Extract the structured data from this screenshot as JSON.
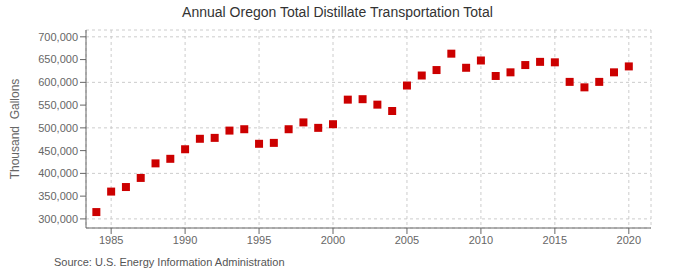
{
  "chart_data": {
    "type": "scatter",
    "title": "Annual Oregon Total Distillate Transportation Total",
    "ylabel": "Thousand  Gallons",
    "annotation": "Source: U.S. Energy Information Administration",
    "x": [
      1984,
      1985,
      1986,
      1987,
      1988,
      1989,
      1990,
      1991,
      1992,
      1993,
      1994,
      1995,
      1996,
      1997,
      1998,
      1999,
      2000,
      2001,
      2002,
      2003,
      2004,
      2005,
      2006,
      2007,
      2008,
      2009,
      2010,
      2011,
      2012,
      2013,
      2014,
      2015,
      2016,
      2017,
      2018,
      2019,
      2020
    ],
    "values": [
      315000,
      360000,
      370000,
      390000,
      422000,
      432000,
      453000,
      476000,
      478000,
      494000,
      497000,
      465000,
      467000,
      497000,
      512000,
      500000,
      508000,
      562000,
      563000,
      551000,
      537000,
      593000,
      615000,
      627000,
      663000,
      632000,
      648000,
      614000,
      622000,
      638000,
      645000,
      644000,
      601000,
      589000,
      601000,
      622000,
      635000
    ],
    "color": "#cc0000",
    "marker": "square",
    "xlim": [
      1983.3,
      2021.5
    ],
    "xticks": [
      1985,
      1990,
      1995,
      2000,
      2005,
      2010,
      2015,
      2020
    ],
    "ylim": [
      280000,
      715000
    ],
    "yticks": [
      {
        "value": 300000,
        "label": "300,000"
      },
      {
        "value": 350000,
        "label": "350,000"
      },
      {
        "value": 400000,
        "label": "400,000"
      },
      {
        "value": 450000,
        "label": "450,000"
      },
      {
        "value": 500000,
        "label": "500,000"
      },
      {
        "value": 550000,
        "label": "550,000"
      },
      {
        "value": 600000,
        "label": "600,000"
      },
      {
        "value": 650000,
        "label": "650,000"
      },
      {
        "value": 700000,
        "label": "700,000"
      }
    ],
    "grid": true
  }
}
